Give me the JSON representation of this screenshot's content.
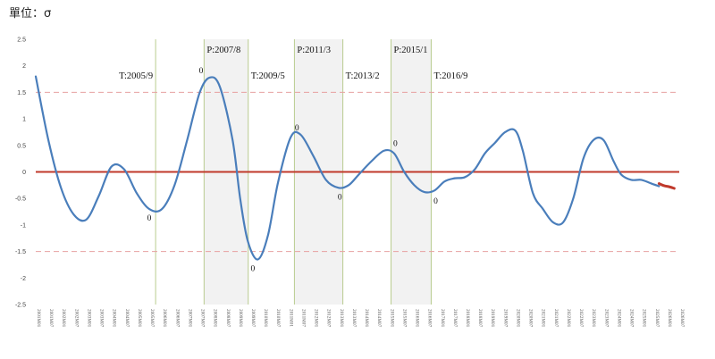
{
  "unit_label": "單位：σ",
  "chart_data": {
    "type": "line",
    "title": "",
    "xlabel": "",
    "ylabel": "單位：σ",
    "ylim": [
      -2.5,
      2.5
    ],
    "yticks": [
      "2.5",
      "2",
      "1.5",
      "1",
      "0.5",
      "0",
      "-0.5",
      "-1",
      "-1.5",
      "-2",
      "-2.5"
    ],
    "ytick_values": [
      2.5,
      2,
      1.5,
      1,
      0.5,
      0,
      -0.5,
      -1,
      -1.5,
      -2,
      -2.5
    ],
    "reference_lines": [
      {
        "y": 0,
        "style": "solid",
        "color": "#c0392b"
      },
      {
        "y": 1.5,
        "style": "dashed",
        "color": "#e8a0a0"
      },
      {
        "y": -1.5,
        "style": "dashed",
        "color": "#e8a0a0"
      }
    ],
    "x_tick_labels": [
      "2001M01",
      "2001M07",
      "2002M01",
      "2002M07",
      "2003M01",
      "2003M07",
      "2004M01",
      "2004M07",
      "2005M01",
      "2005M07",
      "2006M01",
      "2006M07",
      "2007M01",
      "2007M07",
      "2008M01",
      "2008M07",
      "2009M01",
      "2009M07",
      "2010M01",
      "2010M07",
      "2011M01",
      "2011M07",
      "2012M01",
      "2012M07",
      "2013M01",
      "2013M07",
      "2014M01",
      "2014M07",
      "2015M01",
      "2015M07",
      "2016M01",
      "2016M07",
      "2017M01",
      "2017M07",
      "2018M01",
      "2018M07",
      "2019M01",
      "2019M07",
      "2020M01",
      "2020M07",
      "2021M01",
      "2021M07",
      "2022M01",
      "2022M07",
      "2023M01",
      "2023M07",
      "2024M01",
      "2024M07",
      "2025M01",
      "2025M07",
      "2026M01",
      "2026M07"
    ],
    "series": [
      {
        "color": "#4a7ebb",
        "x": [
          2001.0,
          2001.5,
          2002.0,
          2002.5,
          2003.0,
          2003.5,
          2004.0,
          2004.5,
          2005.0,
          2005.5,
          2006.0,
          2006.5,
          2007.0,
          2007.5,
          2007.9,
          2008.3,
          2008.8,
          2009.1,
          2009.4,
          2009.8,
          2010.2,
          2010.6,
          2011.1,
          2011.5,
          2012.0,
          2012.5,
          2013.0,
          2013.4,
          2013.8,
          2014.3,
          2014.8,
          2015.2,
          2015.6,
          2016.0,
          2016.4,
          2016.8,
          2017.2,
          2017.6,
          2018.0,
          2018.4,
          2018.8,
          2019.2,
          2019.6,
          2020.0,
          2020.3,
          2020.7,
          2021.1,
          2021.5,
          2021.9,
          2022.3,
          2022.7,
          2023.1,
          2023.5,
          2023.9,
          2024.2,
          2024.6,
          2025.0,
          2025.4,
          2025.7
        ],
        "y": [
          1.8,
          0.6,
          -0.3,
          -0.8,
          -0.9,
          -0.45,
          0.1,
          0.05,
          -0.4,
          -0.7,
          -0.7,
          -0.25,
          0.6,
          1.5,
          1.78,
          1.6,
          0.6,
          -0.5,
          -1.3,
          -1.65,
          -1.2,
          -0.2,
          0.65,
          0.7,
          0.3,
          -0.15,
          -0.3,
          -0.25,
          -0.05,
          0.2,
          0.4,
          0.35,
          0.0,
          -0.25,
          -0.38,
          -0.35,
          -0.18,
          -0.12,
          -0.1,
          0.05,
          0.35,
          0.55,
          0.75,
          0.78,
          0.4,
          -0.4,
          -0.7,
          -0.95,
          -0.95,
          -0.5,
          0.25,
          0.6,
          0.6,
          0.2,
          -0.05,
          -0.15,
          -0.15,
          -0.22,
          -0.27
        ]
      },
      {
        "color": "#c0392b",
        "x": [
          2025.7,
          2025.9,
          2026.1,
          2026.3
        ],
        "y": [
          -0.22,
          -0.26,
          -0.28,
          -0.31
        ]
      }
    ],
    "shaded_periods": [
      [
        2007.67,
        2009.42
      ],
      [
        2011.25,
        2013.17
      ],
      [
        2015.08,
        2016.67
      ]
    ],
    "vertical_lines": [
      2005.75,
      2007.67,
      2009.42,
      2011.25,
      2013.17,
      2015.08,
      2016.67
    ],
    "turning_points": [
      {
        "label": "T:2005/9",
        "x": 2005.75
      },
      {
        "label": "P:2007/8",
        "x": 2007.67
      },
      {
        "label": "T:2009/5",
        "x": 2009.42
      },
      {
        "label": "P:2011/3",
        "x": 2011.25
      },
      {
        "label": "T:2013/2",
        "x": 2013.17
      },
      {
        "label": "P:2015/1",
        "x": 2015.08
      },
      {
        "label": "T:2016/9",
        "x": 2016.67
      }
    ],
    "point_labels": [
      {
        "text": "0",
        "x": 2005.5,
        "y": -0.7
      },
      {
        "text": "0",
        "x": 2007.55,
        "y": 1.78
      },
      {
        "text": "0",
        "x": 2009.6,
        "y": -1.65
      },
      {
        "text": "0",
        "x": 2011.35,
        "y": 0.7
      },
      {
        "text": "0",
        "x": 2013.05,
        "y": -0.3
      },
      {
        "text": "0",
        "x": 2015.25,
        "y": 0.4
      },
      {
        "text": "0",
        "x": 2016.85,
        "y": -0.38
      }
    ]
  }
}
